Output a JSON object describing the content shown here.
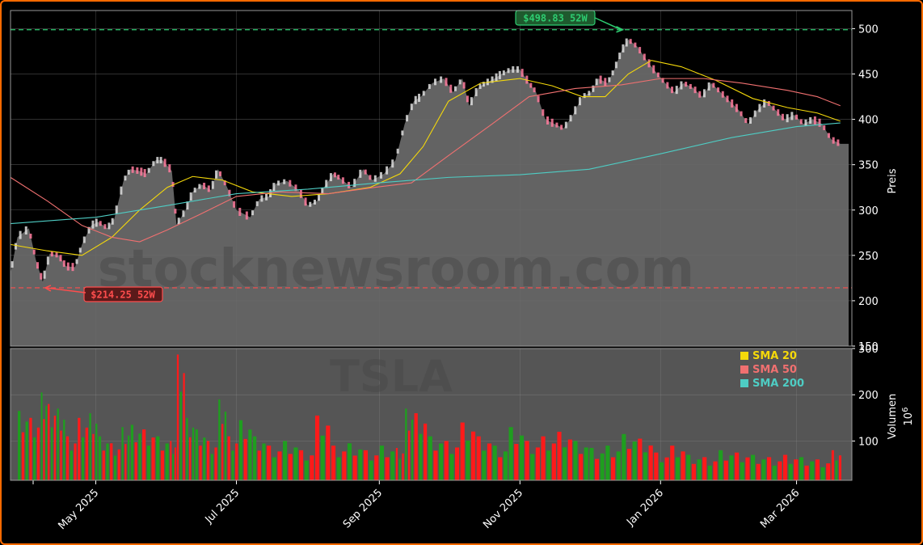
{
  "chart_data": {
    "type": "line",
    "ticker": "TSLA",
    "watermark": "stocknewsroom.com",
    "price_axis": {
      "label": "Preis",
      "ylim": [
        150,
        520
      ],
      "ticks": [
        150,
        200,
        250,
        300,
        350,
        400,
        450,
        500
      ]
    },
    "volume_axis": {
      "label": "Volumen",
      "unit": "10^6",
      "unit_text": "6",
      "ylim": [
        15,
        300
      ],
      "ticks": [
        100,
        200,
        300
      ]
    },
    "x_ticks": [
      {
        "label": "May 2025",
        "date": "2025-05-01"
      },
      {
        "label": "Jul 2025",
        "date": "2025-07-01"
      },
      {
        "label": "Sep 2025",
        "date": "2025-09-01"
      },
      {
        "label": "Nov 2025",
        "date": "2025-11-01"
      },
      {
        "label": "Jan 2026",
        "date": "2026-01-01"
      },
      {
        "label": "Mar 2026",
        "date": "2026-03-01"
      }
    ],
    "x_range": [
      "2025-03-25",
      "2026-03-25"
    ],
    "last_date": "2026-03-20",
    "high_52w": {
      "value": 498.83,
      "label": "$498.83 52W",
      "date": "2025-12-17",
      "color": "#2ecc71"
    },
    "low_52w": {
      "value": 214.25,
      "label": "$214.25 52W",
      "date": "2025-04-08",
      "color": "#ff4d4d"
    },
    "close_series": [
      {
        "date": "2025-03-25",
        "value": 230
      },
      {
        "date": "2025-03-28",
        "value": 270
      },
      {
        "date": "2025-04-02",
        "value": 280
      },
      {
        "date": "2025-04-05",
        "value": 245
      },
      {
        "date": "2025-04-08",
        "value": 221
      },
      {
        "date": "2025-04-11",
        "value": 252
      },
      {
        "date": "2025-04-15",
        "value": 250
      },
      {
        "date": "2025-04-18",
        "value": 238
      },
      {
        "date": "2025-04-22",
        "value": 237
      },
      {
        "date": "2025-04-25",
        "value": 262
      },
      {
        "date": "2025-04-29",
        "value": 283
      },
      {
        "date": "2025-05-02",
        "value": 287
      },
      {
        "date": "2025-05-06",
        "value": 280
      },
      {
        "date": "2025-05-09",
        "value": 290
      },
      {
        "date": "2025-05-13",
        "value": 332
      },
      {
        "date": "2025-05-16",
        "value": 345
      },
      {
        "date": "2025-05-20",
        "value": 343
      },
      {
        "date": "2025-05-23",
        "value": 340
      },
      {
        "date": "2025-05-27",
        "value": 355
      },
      {
        "date": "2025-05-30",
        "value": 355
      },
      {
        "date": "2025-06-03",
        "value": 343
      },
      {
        "date": "2025-06-05",
        "value": 284
      },
      {
        "date": "2025-06-09",
        "value": 300
      },
      {
        "date": "2025-06-12",
        "value": 320
      },
      {
        "date": "2025-06-16",
        "value": 328
      },
      {
        "date": "2025-06-20",
        "value": 322
      },
      {
        "date": "2025-06-23",
        "value": 345
      },
      {
        "date": "2025-06-27",
        "value": 325
      },
      {
        "date": "2025-07-01",
        "value": 300
      },
      {
        "date": "2025-07-07",
        "value": 292
      },
      {
        "date": "2025-07-11",
        "value": 312
      },
      {
        "date": "2025-07-15",
        "value": 315
      },
      {
        "date": "2025-07-18",
        "value": 329
      },
      {
        "date": "2025-07-23",
        "value": 332
      },
      {
        "date": "2025-07-28",
        "value": 322
      },
      {
        "date": "2025-08-01",
        "value": 305
      },
      {
        "date": "2025-08-05",
        "value": 310
      },
      {
        "date": "2025-08-08",
        "value": 325
      },
      {
        "date": "2025-08-12",
        "value": 340
      },
      {
        "date": "2025-08-15",
        "value": 335
      },
      {
        "date": "2025-08-20",
        "value": 325
      },
      {
        "date": "2025-08-25",
        "value": 345
      },
      {
        "date": "2025-08-29",
        "value": 333
      },
      {
        "date": "2025-09-03",
        "value": 340
      },
      {
        "date": "2025-09-08",
        "value": 355
      },
      {
        "date": "2025-09-12",
        "value": 395
      },
      {
        "date": "2025-09-16",
        "value": 420
      },
      {
        "date": "2025-09-19",
        "value": 425
      },
      {
        "date": "2025-09-24",
        "value": 440
      },
      {
        "date": "2025-09-29",
        "value": 445
      },
      {
        "date": "2025-10-03",
        "value": 430
      },
      {
        "date": "2025-10-07",
        "value": 445
      },
      {
        "date": "2025-10-10",
        "value": 415
      },
      {
        "date": "2025-10-14",
        "value": 435
      },
      {
        "date": "2025-10-17",
        "value": 440
      },
      {
        "date": "2025-10-21",
        "value": 445
      },
      {
        "date": "2025-10-24",
        "value": 450
      },
      {
        "date": "2025-10-28",
        "value": 455
      },
      {
        "date": "2025-11-01",
        "value": 455
      },
      {
        "date": "2025-11-05",
        "value": 440
      },
      {
        "date": "2025-11-08",
        "value": 430
      },
      {
        "date": "2025-11-12",
        "value": 400
      },
      {
        "date": "2025-11-16",
        "value": 395
      },
      {
        "date": "2025-11-20",
        "value": 390
      },
      {
        "date": "2025-11-24",
        "value": 405
      },
      {
        "date": "2025-11-28",
        "value": 425
      },
      {
        "date": "2025-12-02",
        "value": 430
      },
      {
        "date": "2025-12-05",
        "value": 445
      },
      {
        "date": "2025-12-09",
        "value": 440
      },
      {
        "date": "2025-12-12",
        "value": 455
      },
      {
        "date": "2025-12-15",
        "value": 475
      },
      {
        "date": "2025-12-18",
        "value": 488
      },
      {
        "date": "2025-12-22",
        "value": 480
      },
      {
        "date": "2025-12-26",
        "value": 465
      },
      {
        "date": "2025-12-30",
        "value": 452
      },
      {
        "date": "2026-01-03",
        "value": 440
      },
      {
        "date": "2026-01-07",
        "value": 430
      },
      {
        "date": "2026-01-11",
        "value": 440
      },
      {
        "date": "2026-01-15",
        "value": 435
      },
      {
        "date": "2026-01-19",
        "value": 425
      },
      {
        "date": "2026-01-23",
        "value": 440
      },
      {
        "date": "2026-01-27",
        "value": 430
      },
      {
        "date": "2026-01-31",
        "value": 420
      },
      {
        "date": "2026-02-04",
        "value": 410
      },
      {
        "date": "2026-02-08",
        "value": 395
      },
      {
        "date": "2026-02-12",
        "value": 410
      },
      {
        "date": "2026-02-16",
        "value": 420
      },
      {
        "date": "2026-02-20",
        "value": 410
      },
      {
        "date": "2026-02-24",
        "value": 400
      },
      {
        "date": "2026-02-28",
        "value": 405
      },
      {
        "date": "2026-03-04",
        "value": 395
      },
      {
        "date": "2026-03-08",
        "value": 400
      },
      {
        "date": "2026-03-12",
        "value": 395
      },
      {
        "date": "2026-03-16",
        "value": 378
      },
      {
        "date": "2026-03-20",
        "value": 373
      }
    ],
    "last_close": 373,
    "series": [
      {
        "name": "SMA 20",
        "color": "#f5d90a",
        "values": [
          {
            "date": "2025-03-25",
            "value": 262
          },
          {
            "date": "2025-04-10",
            "value": 255
          },
          {
            "date": "2025-04-25",
            "value": 250
          },
          {
            "date": "2025-05-08",
            "value": 270
          },
          {
            "date": "2025-05-20",
            "value": 300
          },
          {
            "date": "2025-06-01",
            "value": 325
          },
          {
            "date": "2025-06-12",
            "value": 337
          },
          {
            "date": "2025-06-25",
            "value": 333
          },
          {
            "date": "2025-07-08",
            "value": 320
          },
          {
            "date": "2025-07-25",
            "value": 315
          },
          {
            "date": "2025-08-10",
            "value": 318
          },
          {
            "date": "2025-08-28",
            "value": 325
          },
          {
            "date": "2025-09-10",
            "value": 340
          },
          {
            "date": "2025-09-20",
            "value": 370
          },
          {
            "date": "2025-10-01",
            "value": 420
          },
          {
            "date": "2025-10-15",
            "value": 440
          },
          {
            "date": "2025-11-01",
            "value": 445
          },
          {
            "date": "2025-11-15",
            "value": 437
          },
          {
            "date": "2025-11-28",
            "value": 425
          },
          {
            "date": "2025-12-08",
            "value": 425
          },
          {
            "date": "2025-12-18",
            "value": 450
          },
          {
            "date": "2025-12-28",
            "value": 465
          },
          {
            "date": "2026-01-10",
            "value": 458
          },
          {
            "date": "2026-01-25",
            "value": 443
          },
          {
            "date": "2026-02-10",
            "value": 423
          },
          {
            "date": "2026-02-25",
            "value": 413
          },
          {
            "date": "2026-03-10",
            "value": 407
          },
          {
            "date": "2026-03-20",
            "value": 398
          }
        ]
      },
      {
        "name": "SMA 50",
        "color": "#f07070",
        "values": [
          {
            "date": "2025-03-25",
            "value": 336
          },
          {
            "date": "2025-04-10",
            "value": 310
          },
          {
            "date": "2025-04-25",
            "value": 283
          },
          {
            "date": "2025-05-08",
            "value": 270
          },
          {
            "date": "2025-05-20",
            "value": 265
          },
          {
            "date": "2025-06-01",
            "value": 278
          },
          {
            "date": "2025-06-15",
            "value": 295
          },
          {
            "date": "2025-07-01",
            "value": 315
          },
          {
            "date": "2025-07-20",
            "value": 320
          },
          {
            "date": "2025-08-10",
            "value": 318
          },
          {
            "date": "2025-08-30",
            "value": 325
          },
          {
            "date": "2025-09-15",
            "value": 330
          },
          {
            "date": "2025-10-01",
            "value": 360
          },
          {
            "date": "2025-10-20",
            "value": 395
          },
          {
            "date": "2025-11-05",
            "value": 425
          },
          {
            "date": "2025-11-25",
            "value": 434
          },
          {
            "date": "2025-12-15",
            "value": 438
          },
          {
            "date": "2026-01-01",
            "value": 445
          },
          {
            "date": "2026-01-20",
            "value": 445
          },
          {
            "date": "2026-02-05",
            "value": 440
          },
          {
            "date": "2026-02-25",
            "value": 432
          },
          {
            "date": "2026-03-10",
            "value": 425
          },
          {
            "date": "2026-03-20",
            "value": 415
          }
        ]
      },
      {
        "name": "SMA 200",
        "color": "#4ecdc4",
        "values": [
          {
            "date": "2025-03-25",
            "value": 285
          },
          {
            "date": "2025-05-01",
            "value": 292
          },
          {
            "date": "2025-06-01",
            "value": 305
          },
          {
            "date": "2025-07-01",
            "value": 318
          },
          {
            "date": "2025-08-01",
            "value": 323
          },
          {
            "date": "2025-09-01",
            "value": 330
          },
          {
            "date": "2025-10-01",
            "value": 336
          },
          {
            "date": "2025-11-01",
            "value": 339
          },
          {
            "date": "2025-12-01",
            "value": 345
          },
          {
            "date": "2026-01-01",
            "value": 362
          },
          {
            "date": "2026-02-01",
            "value": 380
          },
          {
            "date": "2026-03-01",
            "value": 392
          },
          {
            "date": "2026-03-20",
            "value": 396
          }
        ]
      }
    ],
    "volume_series": [
      {
        "date": "2025-03-28",
        "value": 165,
        "dir": "up"
      },
      {
        "date": "2025-04-02",
        "value": 150,
        "dir": "down"
      },
      {
        "date": "2025-04-07",
        "value": 205,
        "dir": "up"
      },
      {
        "date": "2025-04-10",
        "value": 180,
        "dir": "down"
      },
      {
        "date": "2025-04-14",
        "value": 170,
        "dir": "up"
      },
      {
        "date": "2025-04-18",
        "value": 110,
        "dir": "down"
      },
      {
        "date": "2025-04-23",
        "value": 150,
        "dir": "down"
      },
      {
        "date": "2025-04-28",
        "value": 160,
        "dir": "up"
      },
      {
        "date": "2025-05-02",
        "value": 110,
        "dir": "up"
      },
      {
        "date": "2025-05-07",
        "value": 95,
        "dir": "down"
      },
      {
        "date": "2025-05-12",
        "value": 130,
        "dir": "up"
      },
      {
        "date": "2025-05-16",
        "value": 135,
        "dir": "up"
      },
      {
        "date": "2025-05-21",
        "value": 125,
        "dir": "down"
      },
      {
        "date": "2025-05-27",
        "value": 110,
        "dir": "up"
      },
      {
        "date": "2025-06-02",
        "value": 100,
        "dir": "down"
      },
      {
        "date": "2025-06-05",
        "value": 287,
        "dir": "down"
      },
      {
        "date": "2025-06-09",
        "value": 150,
        "dir": "up"
      },
      {
        "date": "2025-06-13",
        "value": 125,
        "dir": "up"
      },
      {
        "date": "2025-06-18",
        "value": 100,
        "dir": "down"
      },
      {
        "date": "2025-06-23",
        "value": 190,
        "dir": "up"
      },
      {
        "date": "2025-06-27",
        "value": 110,
        "dir": "down"
      },
      {
        "date": "2025-07-02",
        "value": 145,
        "dir": "up"
      },
      {
        "date": "2025-07-08",
        "value": 110,
        "dir": "up"
      },
      {
        "date": "2025-07-14",
        "value": 90,
        "dir": "down"
      },
      {
        "date": "2025-07-21",
        "value": 100,
        "dir": "up"
      },
      {
        "date": "2025-07-28",
        "value": 80,
        "dir": "down"
      },
      {
        "date": "2025-08-04",
        "value": 155,
        "dir": "down"
      },
      {
        "date": "2025-08-11",
        "value": 90,
        "dir": "down"
      },
      {
        "date": "2025-08-18",
        "value": 95,
        "dir": "up"
      },
      {
        "date": "2025-08-25",
        "value": 80,
        "dir": "down"
      },
      {
        "date": "2025-09-01",
        "value": 90,
        "dir": "up"
      },
      {
        "date": "2025-09-08",
        "value": 85,
        "dir": "down"
      },
      {
        "date": "2025-09-12",
        "value": 170,
        "dir": "up"
      },
      {
        "date": "2025-09-16",
        "value": 160,
        "dir": "down"
      },
      {
        "date": "2025-09-22",
        "value": 110,
        "dir": "up"
      },
      {
        "date": "2025-09-29",
        "value": 100,
        "dir": "down"
      },
      {
        "date": "2025-10-06",
        "value": 140,
        "dir": "down"
      },
      {
        "date": "2025-10-13",
        "value": 110,
        "dir": "down"
      },
      {
        "date": "2025-10-20",
        "value": 90,
        "dir": "up"
      },
      {
        "date": "2025-10-27",
        "value": 130,
        "dir": "up"
      },
      {
        "date": "2025-11-03",
        "value": 100,
        "dir": "down"
      },
      {
        "date": "2025-11-10",
        "value": 110,
        "dir": "down"
      },
      {
        "date": "2025-11-17",
        "value": 120,
        "dir": "down"
      },
      {
        "date": "2025-11-24",
        "value": 100,
        "dir": "up"
      },
      {
        "date": "2025-12-01",
        "value": 85,
        "dir": "up"
      },
      {
        "date": "2025-12-08",
        "value": 90,
        "dir": "up"
      },
      {
        "date": "2025-12-15",
        "value": 115,
        "dir": "up"
      },
      {
        "date": "2025-12-22",
        "value": 105,
        "dir": "down"
      },
      {
        "date": "2025-12-29",
        "value": 75,
        "dir": "down"
      },
      {
        "date": "2026-01-05",
        "value": 90,
        "dir": "down"
      },
      {
        "date": "2026-01-12",
        "value": 70,
        "dir": "up"
      },
      {
        "date": "2026-01-19",
        "value": 65,
        "dir": "down"
      },
      {
        "date": "2026-01-26",
        "value": 80,
        "dir": "up"
      },
      {
        "date": "2026-02-02",
        "value": 75,
        "dir": "down"
      },
      {
        "date": "2026-02-09",
        "value": 70,
        "dir": "up"
      },
      {
        "date": "2026-02-16",
        "value": 65,
        "dir": "down"
      },
      {
        "date": "2026-02-23",
        "value": 70,
        "dir": "down"
      },
      {
        "date": "2026-03-02",
        "value": 65,
        "dir": "up"
      },
      {
        "date": "2026-03-09",
        "value": 60,
        "dir": "down"
      },
      {
        "date": "2026-03-16",
        "value": 80,
        "dir": "down"
      }
    ],
    "colors": {
      "price_fill": "#6b6b6b",
      "volume_bg": "#555555",
      "up": "#1f9e1f",
      "down": "#ff1a1a",
      "grid": "#8a8a8a"
    },
    "grid": true,
    "legend_position": "lower-right of price panel"
  }
}
